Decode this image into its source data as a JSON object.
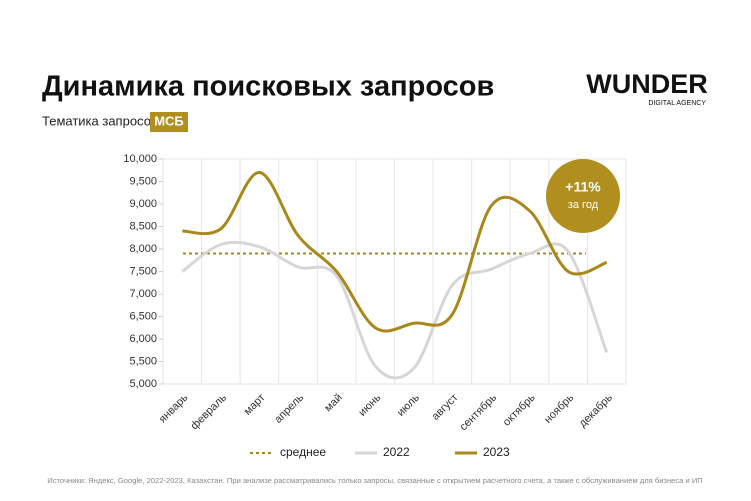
{
  "chart_data": {
    "type": "line",
    "title": "Динамика поисковых запросов",
    "subtitle": "Тематика запросов:",
    "subtitle_tag": "МСБ",
    "logo": {
      "name": "WUNDER",
      "tagline": "DIGITAL AGENCY"
    },
    "annotation": {
      "text": "+11%",
      "subtext": "за год",
      "color": "#b08f1f"
    },
    "source": "Источники: Яндекс, Google, 2022-2023, Казахстан. При анализе рассматривались только запросы, связанные с открытием расчетного счета, а также с обслуживанием для бизнеса и ИП",
    "categories": [
      "январь",
      "февраль",
      "март",
      "апрель",
      "май",
      "июнь",
      "июль",
      "август",
      "сентябрь",
      "октябрь",
      "ноябрь",
      "декабрь"
    ],
    "series": [
      {
        "name": "2022",
        "color": "#d6d6d6",
        "values": [
          7500,
          8100,
          8050,
          7600,
          7400,
          5400,
          5350,
          7200,
          7550,
          7900,
          7950,
          5700
        ]
      },
      {
        "name": "2023",
        "color": "#a8881a",
        "values": [
          8400,
          8450,
          9700,
          8300,
          7500,
          6250,
          6350,
          6550,
          8950,
          8850,
          7500,
          7700
        ]
      }
    ],
    "average": {
      "name": "среднее",
      "value": 7900,
      "color": "#a8881a"
    },
    "ylim": [
      5000,
      10000
    ],
    "yticks": [
      {
        "value": 5000,
        "label": "5,000"
      },
      {
        "value": 5500,
        "label": "5,500"
      },
      {
        "value": 6000,
        "label": "6,000"
      },
      {
        "value": 6500,
        "label": "6,500"
      },
      {
        "value": 7000,
        "label": "7,000"
      },
      {
        "value": 7500,
        "label": "7,500"
      },
      {
        "value": 8000,
        "label": "8,000"
      },
      {
        "value": 8500,
        "label": "8,500"
      },
      {
        "value": 9000,
        "label": "9,000"
      },
      {
        "value": 9500,
        "label": "9,500"
      },
      {
        "value": 10000,
        "label": "10,000"
      }
    ]
  }
}
